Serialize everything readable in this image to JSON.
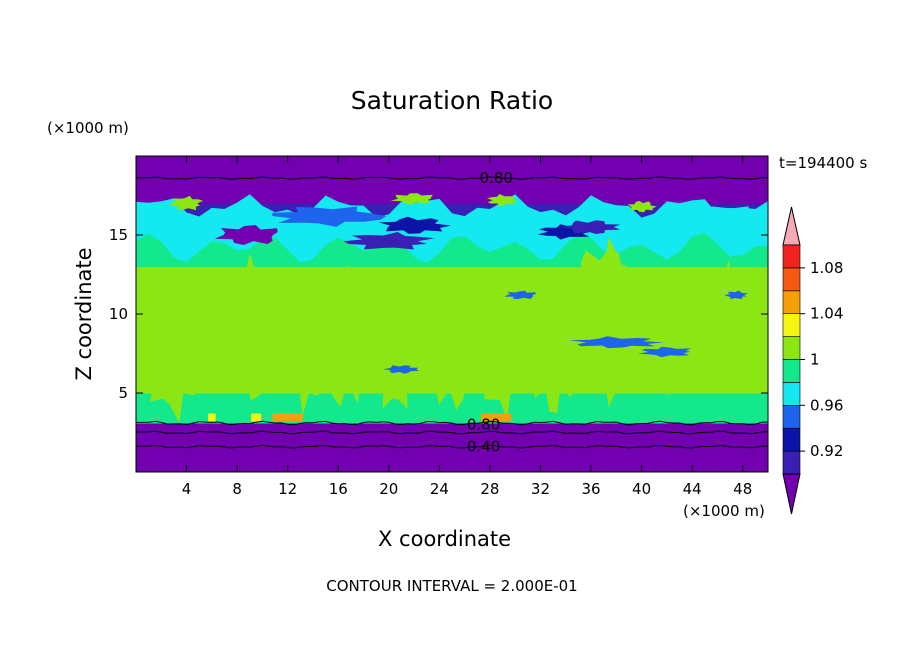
{
  "chart_data": {
    "type": "heatmap",
    "title": "Saturation Ratio",
    "xlabel": "X coordinate",
    "ylabel": "Z coordinate",
    "x_unit": "(×1000 m)",
    "y_unit": "(×1000 m)",
    "time_label": "t=194400 s",
    "contour_note": "CONTOUR INTERVAL = 2.000E-01",
    "xlim": [
      0,
      50
    ],
    "ylim": [
      0,
      20
    ],
    "x_ticks": [
      4,
      8,
      12,
      16,
      20,
      24,
      28,
      32,
      36,
      40,
      44,
      48
    ],
    "y_ticks": [
      5,
      10,
      15
    ],
    "colorbar": {
      "levels": [
        0.92,
        0.96,
        1,
        1.04,
        1.08
      ],
      "tick_labels": [
        "0.92",
        "0.96",
        "1",
        "1.04",
        "1.08"
      ],
      "colors": [
        "#7300b0",
        "#3a1fb4",
        "#0a14a6",
        "#1f64ec",
        "#14e8f0",
        "#14e88c",
        "#8ce614",
        "#f5f510",
        "#f5a00a",
        "#f55a14",
        "#f0231e",
        "#f5aab4"
      ]
    },
    "layers": [
      {
        "z": [
          0,
          3.1
        ],
        "value": "< 0.92",
        "color": "#7300b0"
      },
      {
        "z": [
          3.1,
          5
        ],
        "value": "0.98-1.02",
        "color": "#14e88c"
      },
      {
        "z": [
          5,
          13
        ],
        "value": "mixed 1-1.02 plumes",
        "color": "#8ce614"
      },
      {
        "z": [
          13,
          15.5
        ],
        "value": "0.98-1",
        "color": "#14e88c"
      },
      {
        "z": [
          15.5,
          17
        ],
        "value": "0.92-0.98",
        "color": "#3a1fb4"
      },
      {
        "z": [
          17,
          20
        ],
        "value": "< 0.92",
        "color": "#7300b0"
      }
    ],
    "contour_labels": [
      {
        "text": "0.80",
        "x": 28.5,
        "z": 18.6
      },
      {
        "text": "0.80",
        "x": 27.5,
        "z": 3.0
      },
      {
        "text": "0.40",
        "x": 27.5,
        "z": 1.6
      }
    ]
  }
}
